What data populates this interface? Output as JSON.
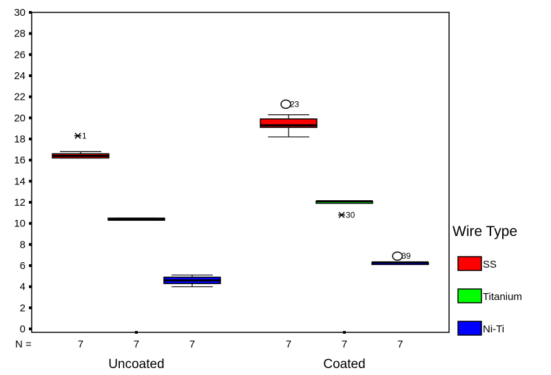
{
  "chart_data": {
    "type": "boxplot",
    "ylim": [
      0,
      30
    ],
    "yticks": [
      0,
      2,
      4,
      6,
      8,
      10,
      12,
      14,
      16,
      18,
      20,
      22,
      24,
      26,
      28,
      30
    ],
    "n_label": "N =",
    "legend": {
      "title": "Wire Type",
      "placement": "right",
      "items": [
        {
          "label": "SS",
          "color": "#ff0000"
        },
        {
          "label": "Titanium",
          "color": "#00ff00"
        },
        {
          "label": "Ni-Ti",
          "color": "#0000ff"
        }
      ]
    },
    "groups": [
      {
        "label": "Uncoated",
        "boxes": [
          {
            "series": "SS",
            "n": "7",
            "min": 16.2,
            "q1": 16.2,
            "median": 16.4,
            "q3": 16.6,
            "max": 16.8,
            "outliers": [
              {
                "value": 18.3,
                "label": "1",
                "marker": "star"
              }
            ]
          },
          {
            "series": "Titanium",
            "n": "7",
            "min": 10.3,
            "q1": 10.3,
            "median": 10.4,
            "q3": 10.5,
            "max": 10.5,
            "outliers": []
          },
          {
            "series": "Ni-Ti",
            "n": "7",
            "min": 4.0,
            "q1": 4.3,
            "median": 4.6,
            "q3": 4.9,
            "max": 5.1,
            "outliers": []
          }
        ]
      },
      {
        "label": "Coated",
        "boxes": [
          {
            "series": "SS",
            "n": "7",
            "min": 18.2,
            "q1": 19.1,
            "median": 19.3,
            "q3": 19.9,
            "max": 20.3,
            "outliers": [
              {
                "value": 21.3,
                "label": "23",
                "marker": "circle"
              }
            ]
          },
          {
            "series": "Titanium",
            "n": "7",
            "min": 12.0,
            "q1": 12.0,
            "median": 12.1,
            "q3": 12.1,
            "max": 12.1,
            "outliers": [
              {
                "value": 10.8,
                "label": "30",
                "marker": "star"
              }
            ]
          },
          {
            "series": "Ni-Ti",
            "n": "7",
            "min": 6.2,
            "q1": 6.2,
            "median": 6.3,
            "q3": 6.3,
            "max": 6.3,
            "outliers": [
              {
                "value": 6.9,
                "label": "39",
                "marker": "circle"
              }
            ]
          }
        ]
      }
    ]
  }
}
